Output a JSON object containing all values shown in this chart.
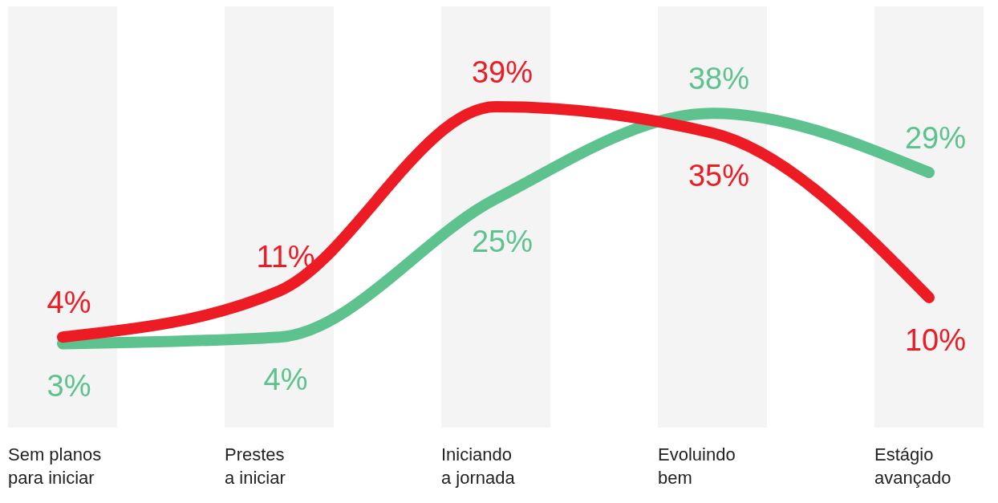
{
  "chart_data": {
    "type": "line",
    "categories": [
      "Sem planos\npara iniciar",
      "Prestes\na iniciar",
      "Iniciando\na jornada",
      "Evoluindo\nbem",
      "Estágio\navançado"
    ],
    "bands": [
      {
        "axis": "x",
        "from": "Sem planos\npara iniciar",
        "to": "Sem planos\npara iniciar",
        "color": "#f4f4f4"
      },
      {
        "axis": "x",
        "from": "Prestes\na iniciar",
        "to": "Prestes\na iniciar",
        "color": "#f4f4f4"
      },
      {
        "axis": "x",
        "from": "Iniciando\na jornada",
        "to": "Iniciando\na jornada",
        "color": "#f4f4f4"
      },
      {
        "axis": "x",
        "from": "Evoluindo\nbem",
        "to": "Evoluindo\nbem",
        "color": "#f4f4f4"
      },
      {
        "axis": "x",
        "from": "Estágio\navançado",
        "to": "Estágio\navançado",
        "color": "#f4f4f4"
      }
    ],
    "series": [
      {
        "color": "#5ec28f",
        "values": [
          3,
          4,
          25,
          38,
          29
        ],
        "value_labels": [
          "3%",
          "4%",
          "25%",
          "38%",
          "29%"
        ]
      },
      {
        "color": "#ed1c24",
        "values": [
          4,
          11,
          39,
          35,
          10
        ],
        "value_labels": [
          "4%",
          "11%",
          "39%",
          "35%",
          "10%"
        ]
      }
    ]
  }
}
